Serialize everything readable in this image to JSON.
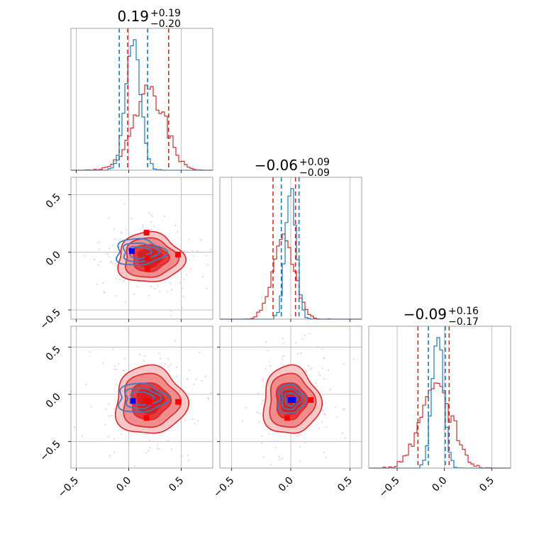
{
  "chart_data": {
    "type": "corner",
    "ticks": [
      "−0.5",
      "0.0",
      "0.5"
    ],
    "tick_values": [
      -0.5,
      0.0,
      0.5
    ],
    "colors": {
      "blue": "#1f77b4",
      "red": "#d62728",
      "red_fill": "#e8393c",
      "marker_red": "#ff0000",
      "marker_blue": "#0000ff",
      "grid": "#b0b0b0"
    },
    "params": [
      {
        "title": {
          "value": "0.19",
          "plus": "+0.19",
          "minus": "−0.20"
        },
        "xlim": [
          -0.55,
          0.8
        ],
        "lines": {
          "blue": [
            -0.09,
            0.18
          ],
          "red": [
            -0.01,
            0.38
          ]
        },
        "hist": {
          "blue": {
            "mean": 0.04,
            "sd": 0.07
          },
          "red": {
            "mean": 0.19,
            "sd": 0.15
          }
        }
      },
      {
        "title": {
          "value": "−0.06",
          "plus": "+0.09",
          "minus": "−0.09"
        },
        "xlim": [
          -0.6,
          0.6
        ],
        "lines": {
          "blue": [
            -0.08,
            0.07
          ],
          "red": [
            -0.15,
            0.04
          ]
        },
        "hist": {
          "blue": {
            "mean": 0.0,
            "sd": 0.045
          },
          "red": {
            "mean": -0.06,
            "sd": 0.09
          }
        }
      },
      {
        "title": {
          "value": "−0.09",
          "plus": "+0.16",
          "minus": "−0.17"
        },
        "xlim": [
          -0.8,
          0.7
        ],
        "lines": {
          "blue": [
            -0.17,
            0.01
          ],
          "red": [
            -0.28,
            0.05
          ]
        },
        "hist": {
          "blue": {
            "mean": -0.07,
            "sd": 0.06
          },
          "red": {
            "mean": -0.09,
            "sd": 0.16
          }
        }
      }
    ],
    "ylims": {
      "row1": [
        -0.58,
        0.65
      ],
      "row2": [
        -0.78,
        0.72
      ]
    },
    "panels_2d": [
      {
        "id": "p10",
        "x": 0,
        "y": 1,
        "red_center": [
          0.2,
          -0.05
        ],
        "red_sd": [
          0.13,
          0.09
        ],
        "blue_center": [
          0.1,
          0.0
        ],
        "blue_sd": [
          0.12,
          0.06
        ],
        "red_markers": [
          [
            0.17,
            0.17
          ],
          [
            0.18,
            -0.05
          ],
          [
            0.18,
            -0.14
          ],
          [
            0.47,
            -0.02
          ]
        ],
        "blue_markers": [
          [
            0.03,
            0.01
          ]
        ]
      },
      {
        "id": "p20",
        "x": 0,
        "y": 2,
        "red_center": [
          0.2,
          -0.07
        ],
        "red_sd": [
          0.14,
          0.15
        ],
        "blue_center": [
          0.12,
          -0.04
        ],
        "blue_sd": [
          0.12,
          0.08
        ],
        "red_markers": [
          [
            0.17,
            -0.07
          ],
          [
            0.2,
            -0.08
          ],
          [
            0.47,
            -0.08
          ],
          [
            0.17,
            -0.25
          ]
        ],
        "blue_markers": [
          [
            0.04,
            -0.07
          ]
        ]
      },
      {
        "id": "p21",
        "x": 1,
        "y": 2,
        "red_center": [
          0.0,
          -0.07
        ],
        "red_sd": [
          0.1,
          0.15
        ],
        "blue_center": [
          0.0,
          -0.05
        ],
        "blue_sd": [
          0.06,
          0.08
        ],
        "red_markers": [
          [
            0.0,
            -0.06
          ],
          [
            0.17,
            -0.06
          ],
          [
            -0.03,
            -0.25
          ]
        ],
        "blue_markers": [
          [
            0.0,
            -0.06
          ],
          [
            0.02,
            -0.06
          ]
        ]
      }
    ]
  }
}
